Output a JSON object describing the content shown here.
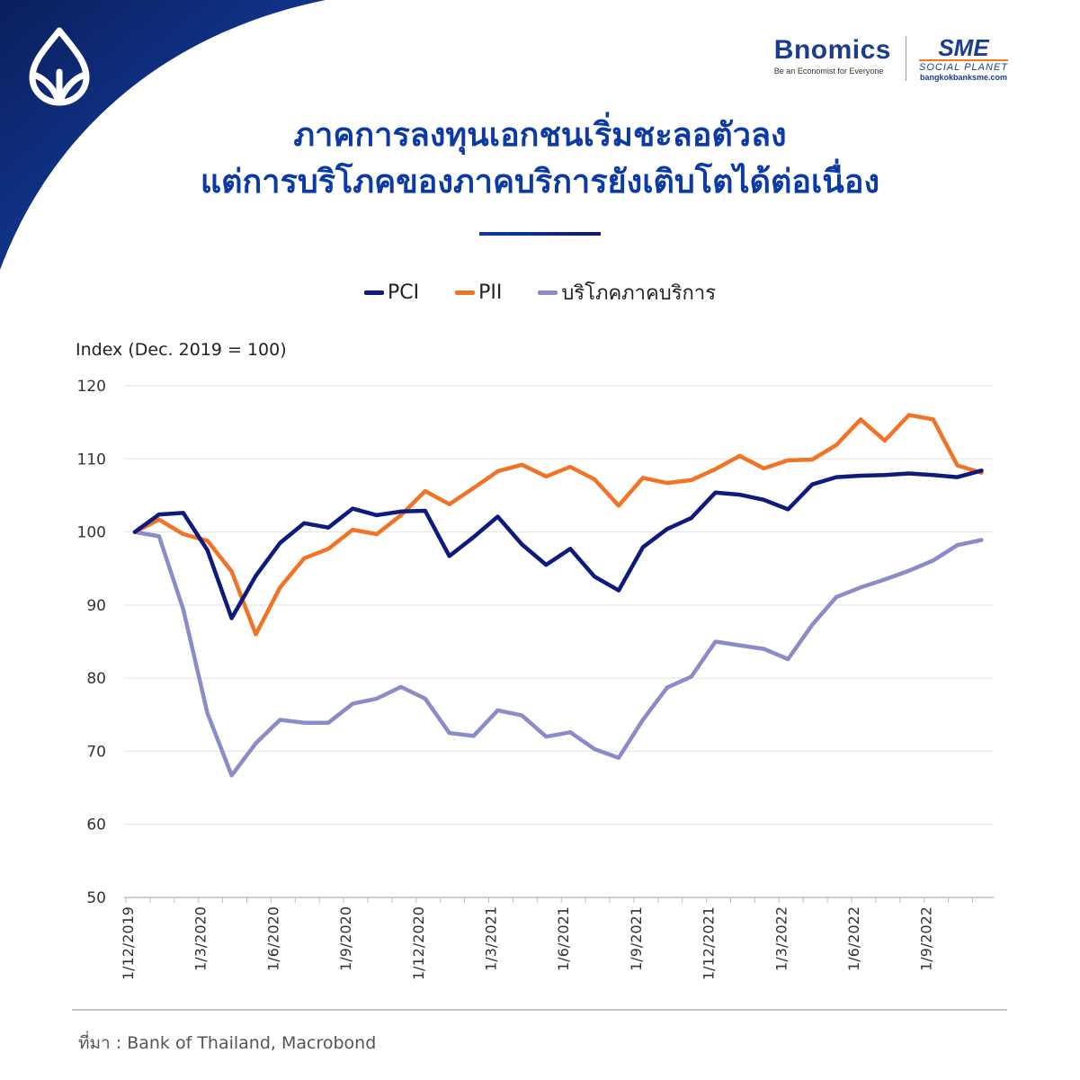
{
  "branding": {
    "logo_icon": "bangkok-bank-lotus-icon",
    "bnomics_name": "Bnomics",
    "bnomics_tagline": "Be an Economist for Everyone",
    "sme_name": "SME",
    "sme_subtitle": "SOCIAL PLANET",
    "sme_url": "bangkokbanksme.com",
    "colors": {
      "primary": "#0b3aa4",
      "dark": "#0a1f5c",
      "accent": "#f47a20"
    }
  },
  "title_line1": "ภาคการลงทุนเอกชนเริ่มชะลอตัวลง",
  "title_line2": "แต่การบริโภคของภาคบริการยังเติบโตได้ต่อเนื่อง",
  "source": "ที่มา : Bank of Thailand, Macrobond",
  "chart_data": {
    "type": "line",
    "ylabel": "Index (Dec. 2019 = 100)",
    "ylim": [
      50,
      120
    ],
    "yticks": [
      50,
      60,
      70,
      80,
      90,
      100,
      110,
      120
    ],
    "grid": true,
    "legend_position": "top-center",
    "x": [
      "1/12/2019",
      "1/1/2020",
      "1/2/2020",
      "1/3/2020",
      "1/4/2020",
      "1/5/2020",
      "1/6/2020",
      "1/7/2020",
      "1/8/2020",
      "1/9/2020",
      "1/10/2020",
      "1/11/2020",
      "1/12/2020",
      "1/1/2021",
      "1/2/2021",
      "1/3/2021",
      "1/4/2021",
      "1/5/2021",
      "1/6/2021",
      "1/7/2021",
      "1/8/2021",
      "1/9/2021",
      "1/10/2021",
      "1/11/2021",
      "1/12/2021",
      "1/1/2022",
      "1/2/2022",
      "1/3/2022",
      "1/4/2022",
      "1/5/2022",
      "1/6/2022",
      "1/7/2022",
      "1/8/2022",
      "1/9/2022",
      "1/10/2022",
      "1/11/2022"
    ],
    "xtick_labels": [
      "1/12/2019",
      "1/3/2020",
      "1/6/2020",
      "1/9/2020",
      "1/12/2020",
      "1/3/2021",
      "1/6/2021",
      "1/9/2021",
      "1/12/2021",
      "1/3/2022",
      "1/6/2022",
      "1/9/2022"
    ],
    "series": [
      {
        "name": "PCI",
        "color": "#0e1a7c",
        "values": [
          100,
          102.4,
          102.6,
          97.5,
          88.2,
          94,
          98.5,
          101.2,
          100.6,
          103.2,
          102.3,
          102.8,
          102.9,
          96.7,
          99.3,
          102.1,
          98.3,
          95.5,
          97.7,
          93.9,
          92,
          97.9,
          100.4,
          101.9,
          105.4,
          105.1,
          104.4,
          103.1,
          106.5,
          107.5,
          107.7,
          107.8,
          108,
          107.8,
          107.5,
          108.4
        ]
      },
      {
        "name": "PII",
        "color": "#f07427",
        "values": [
          100,
          101.7,
          99.7,
          98.8,
          94.6,
          86,
          92.4,
          96.4,
          97.7,
          100.3,
          99.7,
          102.3,
          105.6,
          103.8,
          106,
          108.3,
          109.2,
          107.6,
          108.9,
          107.2,
          103.6,
          107.4,
          106.7,
          107.1,
          108.6,
          110.4,
          108.7,
          109.8,
          109.9,
          111.9,
          115.4,
          112.5,
          116,
          115.4,
          109.1,
          108.1
        ]
      },
      {
        "name": "บริโภคภาคบริการ",
        "color": "#8b8cc7",
        "values": [
          100,
          99.4,
          89.4,
          75.2,
          66.7,
          71.1,
          74.3,
          73.9,
          73.9,
          76.5,
          77.2,
          78.8,
          77.2,
          72.5,
          72.1,
          75.6,
          74.9,
          72,
          72.6,
          70.3,
          69.1,
          74.3,
          78.7,
          80.2,
          85,
          84.5,
          84,
          82.6,
          87.3,
          91.1,
          92.4,
          93.5,
          94.7,
          96.1,
          98.2,
          98.9
        ]
      }
    ]
  }
}
